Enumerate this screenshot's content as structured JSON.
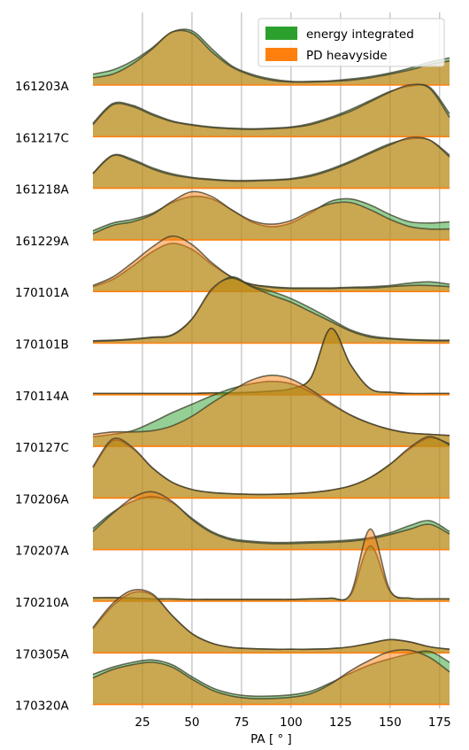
{
  "chart_data": {
    "type": "area",
    "xlabel": "PA [$^\\circ$]",
    "xlabel_display": "PA [ ° ]",
    "xlim": [
      0,
      180
    ],
    "xticks": [
      25,
      50,
      75,
      100,
      125,
      150,
      175
    ],
    "grid": "vertical",
    "legend": {
      "placement": "top-right",
      "entries": [
        {
          "name": "energy integrated",
          "color": "#2ca02c"
        },
        {
          "name": "PD heavyside",
          "color": "#ff7f0e"
        }
      ]
    },
    "series_names": [
      "energy integrated",
      "PD heavyside"
    ],
    "fill_alpha": 0.5,
    "x": [
      0,
      10,
      20,
      30,
      40,
      50,
      60,
      70,
      80,
      90,
      100,
      110,
      120,
      130,
      140,
      150,
      160,
      170,
      180
    ],
    "rows": [
      {
        "label": "161203A",
        "energy_integrated": [
          0.18,
          0.25,
          0.4,
          0.62,
          0.88,
          0.9,
          0.6,
          0.32,
          0.18,
          0.1,
          0.06,
          0.06,
          0.07,
          0.1,
          0.14,
          0.2,
          0.28,
          0.38,
          0.45
        ],
        "pd_heavyside": [
          0.12,
          0.18,
          0.35,
          0.6,
          0.88,
          0.86,
          0.55,
          0.3,
          0.16,
          0.08,
          0.05,
          0.05,
          0.06,
          0.08,
          0.12,
          0.18,
          0.25,
          0.34,
          0.4
        ]
      },
      {
        "label": "161217C",
        "energy_integrated": [
          0.22,
          0.55,
          0.52,
          0.38,
          0.26,
          0.2,
          0.16,
          0.14,
          0.13,
          0.14,
          0.16,
          0.22,
          0.32,
          0.45,
          0.6,
          0.75,
          0.84,
          0.82,
          0.38
        ],
        "pd_heavyside": [
          0.2,
          0.53,
          0.5,
          0.36,
          0.25,
          0.19,
          0.15,
          0.13,
          0.12,
          0.13,
          0.15,
          0.2,
          0.3,
          0.42,
          0.58,
          0.74,
          0.86,
          0.8,
          0.32
        ]
      },
      {
        "label": "161218A",
        "energy_integrated": [
          0.25,
          0.55,
          0.48,
          0.34,
          0.24,
          0.18,
          0.15,
          0.13,
          0.13,
          0.14,
          0.16,
          0.22,
          0.32,
          0.45,
          0.6,
          0.74,
          0.82,
          0.8,
          0.55
        ],
        "pd_heavyside": [
          0.24,
          0.54,
          0.46,
          0.32,
          0.22,
          0.17,
          0.14,
          0.12,
          0.12,
          0.13,
          0.15,
          0.2,
          0.3,
          0.43,
          0.58,
          0.72,
          0.84,
          0.8,
          0.52
        ]
      },
      {
        "label": "161229A",
        "energy_integrated": [
          0.15,
          0.28,
          0.34,
          0.44,
          0.62,
          0.72,
          0.68,
          0.5,
          0.3,
          0.22,
          0.28,
          0.45,
          0.64,
          0.68,
          0.58,
          0.42,
          0.3,
          0.28,
          0.3
        ],
        "pd_heavyside": [
          0.1,
          0.24,
          0.3,
          0.42,
          0.64,
          0.8,
          0.72,
          0.5,
          0.32,
          0.26,
          0.32,
          0.48,
          0.6,
          0.62,
          0.5,
          0.34,
          0.22,
          0.18,
          0.18
        ]
      },
      {
        "label": "170101A",
        "energy_integrated": [
          0.08,
          0.2,
          0.42,
          0.66,
          0.8,
          0.7,
          0.45,
          0.24,
          0.12,
          0.08,
          0.06,
          0.06,
          0.06,
          0.07,
          0.08,
          0.1,
          0.14,
          0.16,
          0.12
        ],
        "pd_heavyside": [
          0.1,
          0.24,
          0.48,
          0.74,
          0.92,
          0.78,
          0.48,
          0.24,
          0.12,
          0.07,
          0.05,
          0.05,
          0.05,
          0.06,
          0.06,
          0.08,
          0.1,
          0.1,
          0.08
        ]
      },
      {
        "label": "170101B",
        "energy_integrated": [
          0.04,
          0.05,
          0.07,
          0.1,
          0.14,
          0.4,
          0.88,
          1.1,
          0.95,
          0.86,
          0.74,
          0.58,
          0.4,
          0.22,
          0.12,
          0.08,
          0.06,
          0.05,
          0.05
        ],
        "pd_heavyside": [
          0.03,
          0.04,
          0.06,
          0.09,
          0.13,
          0.4,
          0.9,
          1.08,
          0.94,
          0.8,
          0.68,
          0.52,
          0.36,
          0.2,
          0.1,
          0.07,
          0.05,
          0.04,
          0.04
        ],
        "max_label_hidden": true
      },
      {
        "label": "170114A",
        "energy_integrated": [
          0.02,
          0.02,
          0.02,
          0.02,
          0.02,
          0.02,
          0.03,
          0.03,
          0.04,
          0.06,
          0.1,
          0.28,
          1.1,
          0.5,
          0.1,
          0.04,
          0.02,
          0.02,
          0.02
        ],
        "pd_heavyside": [
          0.02,
          0.02,
          0.02,
          0.02,
          0.02,
          0.02,
          0.03,
          0.03,
          0.04,
          0.06,
          0.1,
          0.28,
          1.1,
          0.5,
          0.1,
          0.04,
          0.02,
          0.02,
          0.02
        ]
      },
      {
        "label": "170127C",
        "energy_integrated": [
          0.16,
          0.2,
          0.26,
          0.4,
          0.56,
          0.7,
          0.84,
          0.96,
          1.04,
          1.08,
          1.04,
          0.9,
          0.7,
          0.52,
          0.38,
          0.28,
          0.22,
          0.2,
          0.18
        ],
        "pd_heavyside": [
          0.2,
          0.24,
          0.24,
          0.26,
          0.34,
          0.5,
          0.72,
          0.92,
          1.1,
          1.18,
          1.12,
          0.94,
          0.72,
          0.52,
          0.38,
          0.28,
          0.22,
          0.2,
          0.18
        ]
      },
      {
        "label": "170206A",
        "energy_integrated": [
          0.5,
          0.95,
          0.82,
          0.5,
          0.26,
          0.14,
          0.09,
          0.07,
          0.06,
          0.06,
          0.07,
          0.09,
          0.13,
          0.2,
          0.34,
          0.56,
          0.82,
          1.0,
          0.9
        ],
        "pd_heavyside": [
          0.52,
          0.98,
          0.84,
          0.5,
          0.26,
          0.14,
          0.09,
          0.07,
          0.06,
          0.06,
          0.07,
          0.09,
          0.13,
          0.2,
          0.34,
          0.56,
          0.84,
          1.02,
          0.88
        ]
      },
      {
        "label": "170207A",
        "energy_integrated": [
          0.35,
          0.62,
          0.8,
          0.88,
          0.78,
          0.52,
          0.3,
          0.18,
          0.14,
          0.12,
          0.12,
          0.13,
          0.14,
          0.16,
          0.2,
          0.28,
          0.4,
          0.48,
          0.3
        ],
        "pd_heavyside": [
          0.3,
          0.6,
          0.86,
          0.96,
          0.8,
          0.5,
          0.28,
          0.16,
          0.12,
          0.1,
          0.1,
          0.11,
          0.12,
          0.14,
          0.18,
          0.25,
          0.34,
          0.42,
          0.26
        ]
      },
      {
        "label": "170210A",
        "energy_integrated": [
          0.05,
          0.06,
          0.05,
          0.04,
          0.04,
          0.03,
          0.03,
          0.03,
          0.03,
          0.03,
          0.03,
          0.04,
          0.05,
          0.1,
          0.92,
          0.16,
          0.05,
          0.04,
          0.04
        ],
        "pd_heavyside": [
          0.06,
          0.06,
          0.05,
          0.04,
          0.04,
          0.03,
          0.03,
          0.03,
          0.03,
          0.03,
          0.03,
          0.04,
          0.05,
          0.12,
          1.2,
          0.18,
          0.05,
          0.04,
          0.04
        ]
      },
      {
        "label": "170305A",
        "energy_integrated": [
          0.4,
          0.78,
          1.0,
          0.96,
          0.62,
          0.32,
          0.16,
          0.09,
          0.07,
          0.06,
          0.06,
          0.06,
          0.07,
          0.1,
          0.16,
          0.22,
          0.18,
          0.1,
          0.06
        ],
        "pd_heavyside": [
          0.42,
          0.82,
          1.04,
          0.98,
          0.62,
          0.32,
          0.16,
          0.09,
          0.07,
          0.06,
          0.06,
          0.06,
          0.07,
          0.1,
          0.16,
          0.22,
          0.18,
          0.1,
          0.06
        ]
      },
      {
        "label": "170320A",
        "energy_integrated": [
          0.5,
          0.62,
          0.7,
          0.74,
          0.66,
          0.46,
          0.28,
          0.18,
          0.14,
          0.14,
          0.16,
          0.22,
          0.36,
          0.52,
          0.66,
          0.76,
          0.84,
          0.88,
          0.7
        ],
        "pd_heavyside": [
          0.44,
          0.58,
          0.66,
          0.7,
          0.62,
          0.42,
          0.24,
          0.14,
          0.1,
          0.1,
          0.12,
          0.18,
          0.34,
          0.56,
          0.74,
          0.88,
          0.9,
          0.78,
          0.54
        ]
      }
    ]
  }
}
